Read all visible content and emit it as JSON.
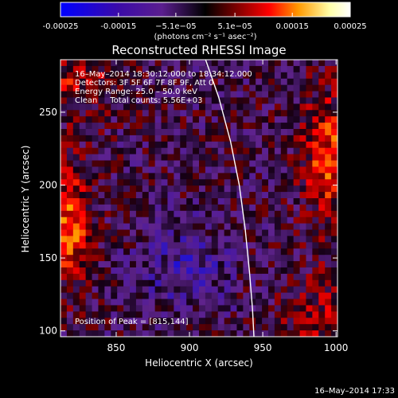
{
  "chart_data": {
    "type": "heatmap",
    "title": "Reconstructed RHESSI Image",
    "xlabel": "Heliocentric X (arcsec)",
    "ylabel": "Heliocentric Y (arcsec)",
    "xlim": [
      812,
      1001
    ],
    "ylim": [
      96,
      286
    ],
    "x_ticks": [
      "850",
      "900",
      "950",
      "1000"
    ],
    "x_tick_values": [
      850,
      900,
      950,
      1000
    ],
    "y_ticks": [
      "100",
      "150",
      "200",
      "250"
    ],
    "y_tick_values": [
      100,
      150,
      200,
      250
    ],
    "colorbar": {
      "range": [
        -0.00025,
        0.00025
      ],
      "colormap": [
        "#0000ff",
        "#3b0ba8",
        "#5b1e8f",
        "#000000",
        "#8b0000",
        "#ff0000",
        "#ff9900",
        "#ffffaa",
        "#ffffff"
      ],
      "tick_labels": [
        "-0.00025",
        "-0.00015",
        "−5.1e−05",
        "5.1e−05",
        "0.00015",
        "0.00025"
      ],
      "tick_values": [
        -0.00025,
        -0.00015,
        -5.1e-05,
        5.1e-05,
        0.00015,
        0.00025
      ],
      "unit_label": "(photons cm⁻² s⁻¹ asec⁻²)"
    },
    "annotations": [
      "16–May–2014 18:30:12.000 to 18:34:12.000",
      "Detectors: 3F 5F 6F 7F 8F 9F, Att 0",
      "Energy Range: 25.0 – 50.0 keV",
      "Clean     Total counts: 5.56E+03"
    ],
    "peak_label": "Position of Peak = [815,144]",
    "peak_position": [
      815,
      144
    ],
    "limb_curve": {
      "x": [
        911,
        920,
        928,
        934,
        938,
        941,
        943,
        944
      ],
      "y": [
        286,
        260,
        230,
        200,
        170,
        140,
        115,
        96
      ]
    },
    "grid": false
  },
  "footer": {
    "timestamp": "16–May–2014 17:33"
  }
}
